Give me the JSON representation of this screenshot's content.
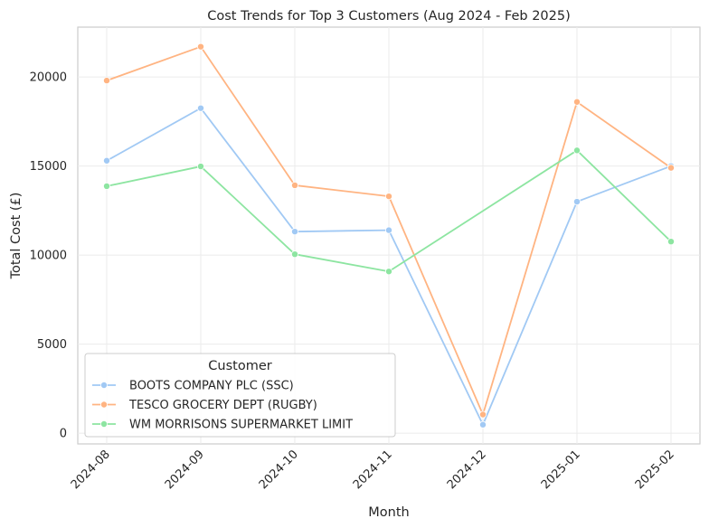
{
  "chart_data": {
    "type": "line",
    "title": "Cost Trends for Top 3 Customers (Aug 2024 - Feb 2025)",
    "xlabel": "Month",
    "ylabel": "Total Cost (£)",
    "categories": [
      "2024-08",
      "2024-09",
      "2024-10",
      "2024-11",
      "2024-12",
      "2025-01",
      "2025-02"
    ],
    "yticks": [
      0,
      5000,
      10000,
      15000,
      20000
    ],
    "ylim": [
      -600,
      22800
    ],
    "grid": true,
    "legend": {
      "title": "Customer",
      "placement": "lower-left"
    },
    "series": [
      {
        "name": "BOOTS COMPANY PLC (SSC)",
        "color": "#a1c9f4",
        "values": [
          15300,
          18250,
          11320,
          11400,
          480,
          13000,
          15000
        ]
      },
      {
        "name": "TESCO GROCERY DEPT (RUGBY)",
        "color": "#ffb482",
        "values": [
          19800,
          21700,
          13920,
          13300,
          1050,
          18600,
          14900
        ]
      },
      {
        "name": "WM MORRISONS SUPERMARKET LIMIT",
        "color": "#8de5a1",
        "values": [
          13870,
          14980,
          10050,
          9080,
          null,
          15880,
          10760
        ]
      }
    ]
  }
}
